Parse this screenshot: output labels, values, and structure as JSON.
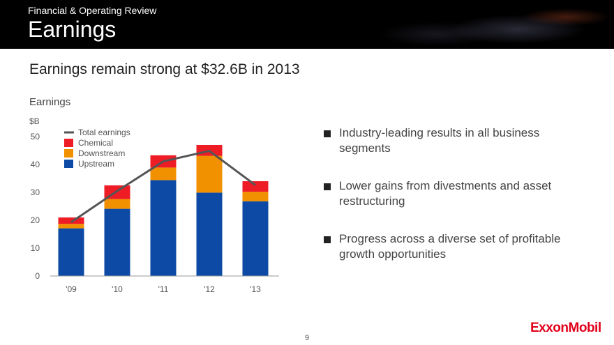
{
  "header": {
    "section": "Financial & Operating Review",
    "title": "Earnings"
  },
  "headline": "Earnings remain strong at $32.6B in 2013",
  "chart_data": {
    "type": "bar",
    "stacked": true,
    "title": "Earnings",
    "ylabel": "$B",
    "ylim": [
      0,
      50
    ],
    "yticks": [
      0,
      10,
      20,
      30,
      40,
      50
    ],
    "categories": [
      "'09",
      "'10",
      "'11",
      "'12",
      "'13"
    ],
    "series": [
      {
        "name": "Upstream",
        "color": "#0c4aa6",
        "values": [
          17.1,
          24.1,
          34.4,
          29.9,
          26.8
        ]
      },
      {
        "name": "Downstream",
        "color": "#f29100",
        "values": [
          1.6,
          3.5,
          4.5,
          13.2,
          3.4
        ]
      },
      {
        "name": "Chemical",
        "color": "#ee1c25",
        "values": [
          2.3,
          4.9,
          4.4,
          3.9,
          3.8
        ]
      }
    ],
    "line": {
      "name": "Total earnings",
      "color": "#555555",
      "values": [
        19.3,
        30.5,
        41.1,
        44.9,
        32.6
      ]
    },
    "legend": {
      "placement": "top-left",
      "entries": [
        "Total earnings",
        "Chemical",
        "Downstream",
        "Upstream"
      ]
    },
    "grid": false
  },
  "bullets": [
    "Industry-leading results in all business segments",
    "Lower gains from divestments and asset restructuring",
    "Progress across a diverse set of profitable growth opportunities"
  ],
  "page_number": "9",
  "logo_text": "ExxonMobil"
}
